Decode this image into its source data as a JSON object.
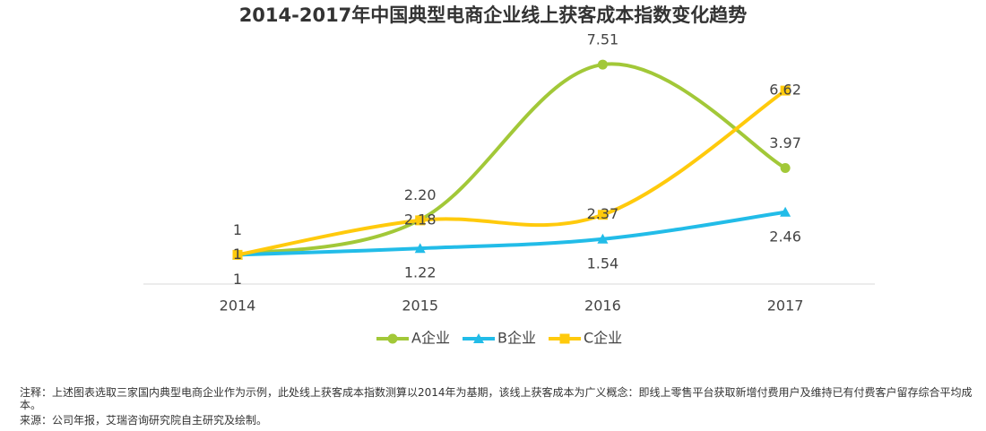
{
  "chart_data": {
    "type": "line",
    "title": "2014-2017年中国典型电商企业线上获客成本指数变化趋势",
    "categories": [
      "2014",
      "2015",
      "2016",
      "2017"
    ],
    "series": [
      {
        "name": "A企业",
        "color": "#a2c838",
        "marker": "circle",
        "values": [
          1,
          2.2,
          7.51,
          3.97
        ],
        "value_labels": [
          "1",
          "2.20",
          "7.51",
          "3.97"
        ]
      },
      {
        "name": "B企业",
        "color": "#22bce8",
        "marker": "triangle",
        "values": [
          1,
          1.22,
          1.54,
          2.46
        ]
      },
      {
        "name": "C企业",
        "color": "#ffca0c",
        "marker": "square",
        "values": [
          1,
          2.18,
          2.37,
          6.62
        ]
      }
    ],
    "ylim": [
      0,
      8.8
    ],
    "notes": [
      "注释：上述图表选取三家国内典型电商企业作为示例，此处线上获客成本指数测算以2014年为基期，该线上获客成本为广义概念：即线上零售平台获取新增付费用户及维持已有付费客户留存综合平均成本。",
      "来源：公司年报，艾瑞咨询研究院自主研究及绘制。"
    ]
  }
}
